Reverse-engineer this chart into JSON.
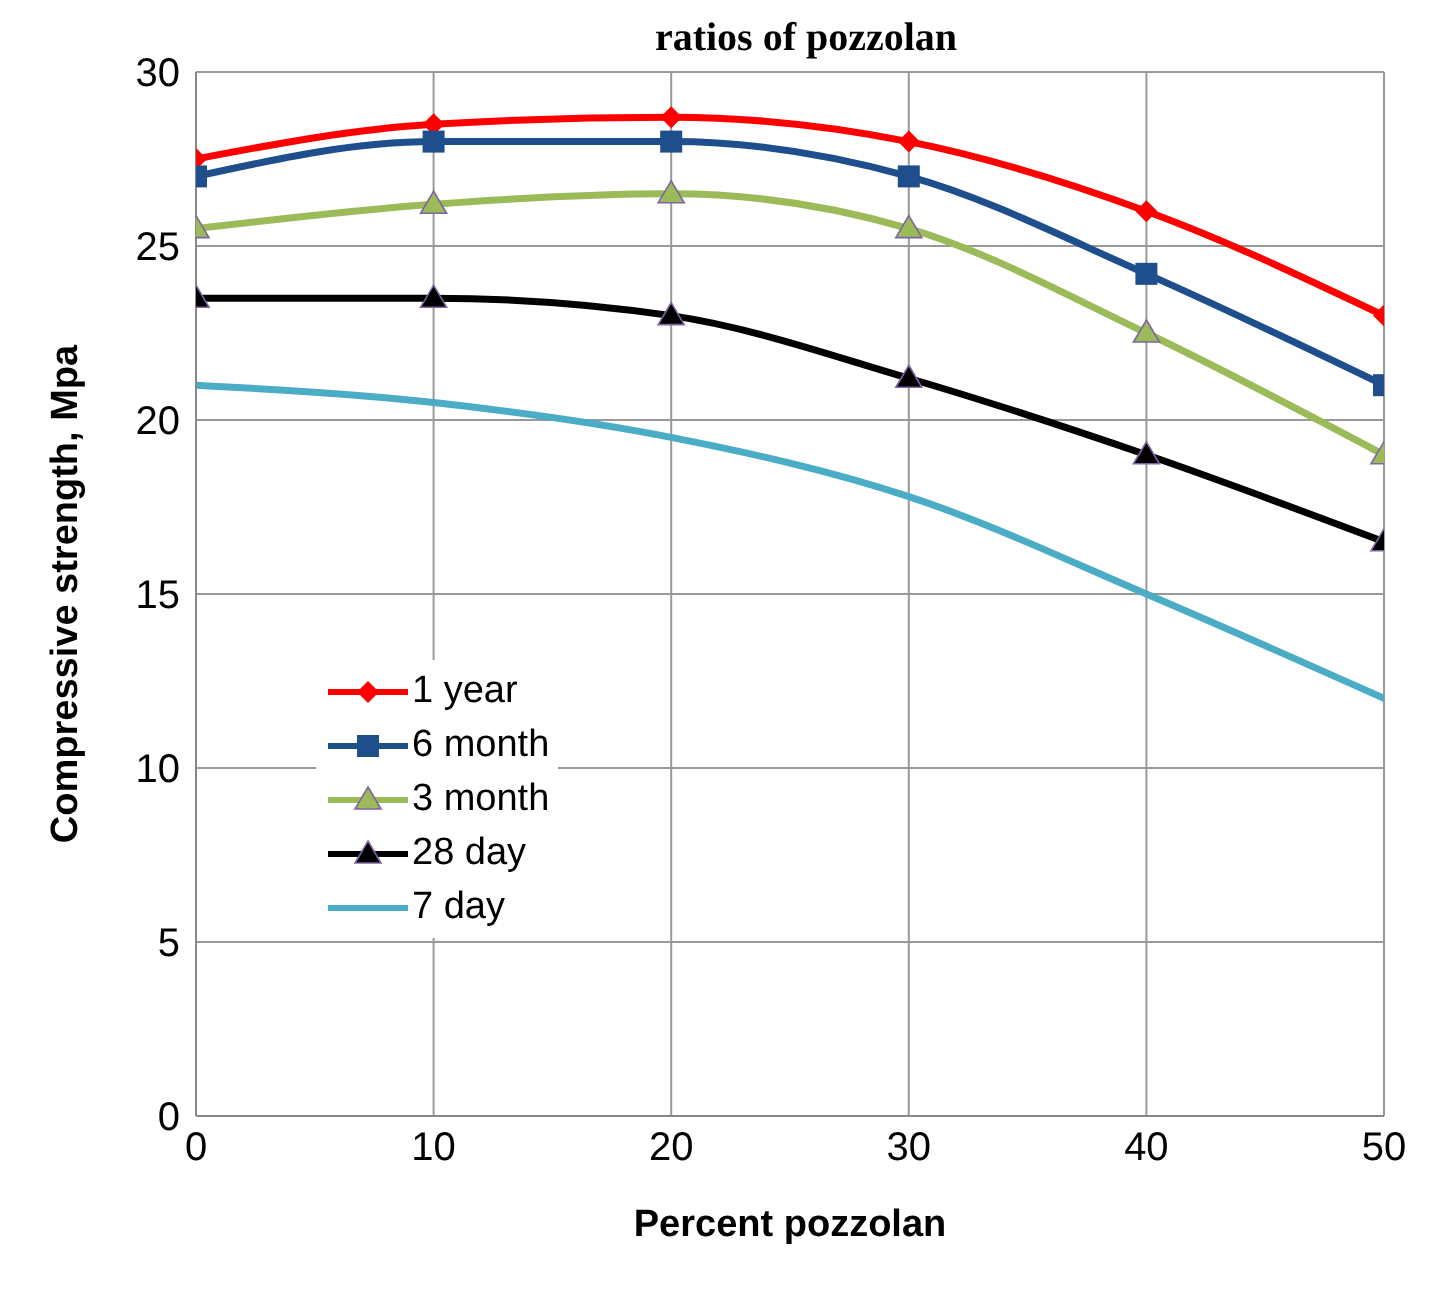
{
  "chart_data": {
    "type": "line",
    "title": "ratios of pozzolan",
    "xlabel": "Percent pozzolan",
    "ylabel": "Compressive strength, Mpa",
    "x": [
      0,
      10,
      20,
      30,
      40,
      50
    ],
    "series": [
      {
        "name": "1 year",
        "color": "#ff0000",
        "marker": "diamond",
        "values": [
          27.5,
          28.5,
          28.7,
          28,
          26,
          23
        ]
      },
      {
        "name": "6 month",
        "color": "#1f4e8c",
        "marker": "square",
        "values": [
          27,
          28,
          28,
          27,
          24.2,
          21
        ]
      },
      {
        "name": "3 month",
        "color": "#9bbb59",
        "marker": "triangle",
        "values": [
          25.5,
          26.2,
          26.5,
          25.5,
          22.5,
          19
        ]
      },
      {
        "name": "28 day",
        "color": "#000000",
        "marker": "triangle",
        "values": [
          23.5,
          23.5,
          23,
          21.2,
          19,
          16.5
        ]
      },
      {
        "name": "7 day",
        "color": "#4bacc6",
        "marker": "none",
        "values": [
          21,
          20.5,
          19.5,
          17.8,
          15,
          12
        ]
      }
    ],
    "xlim": [
      0,
      50
    ],
    "xticks": [
      0,
      10,
      20,
      30,
      40,
      50
    ],
    "ylim": [
      0,
      30
    ],
    "yticks": [
      0,
      5,
      10,
      15,
      20,
      25,
      30
    ],
    "grid": true,
    "legend": "bottom left",
    "line_style": "solid"
  }
}
